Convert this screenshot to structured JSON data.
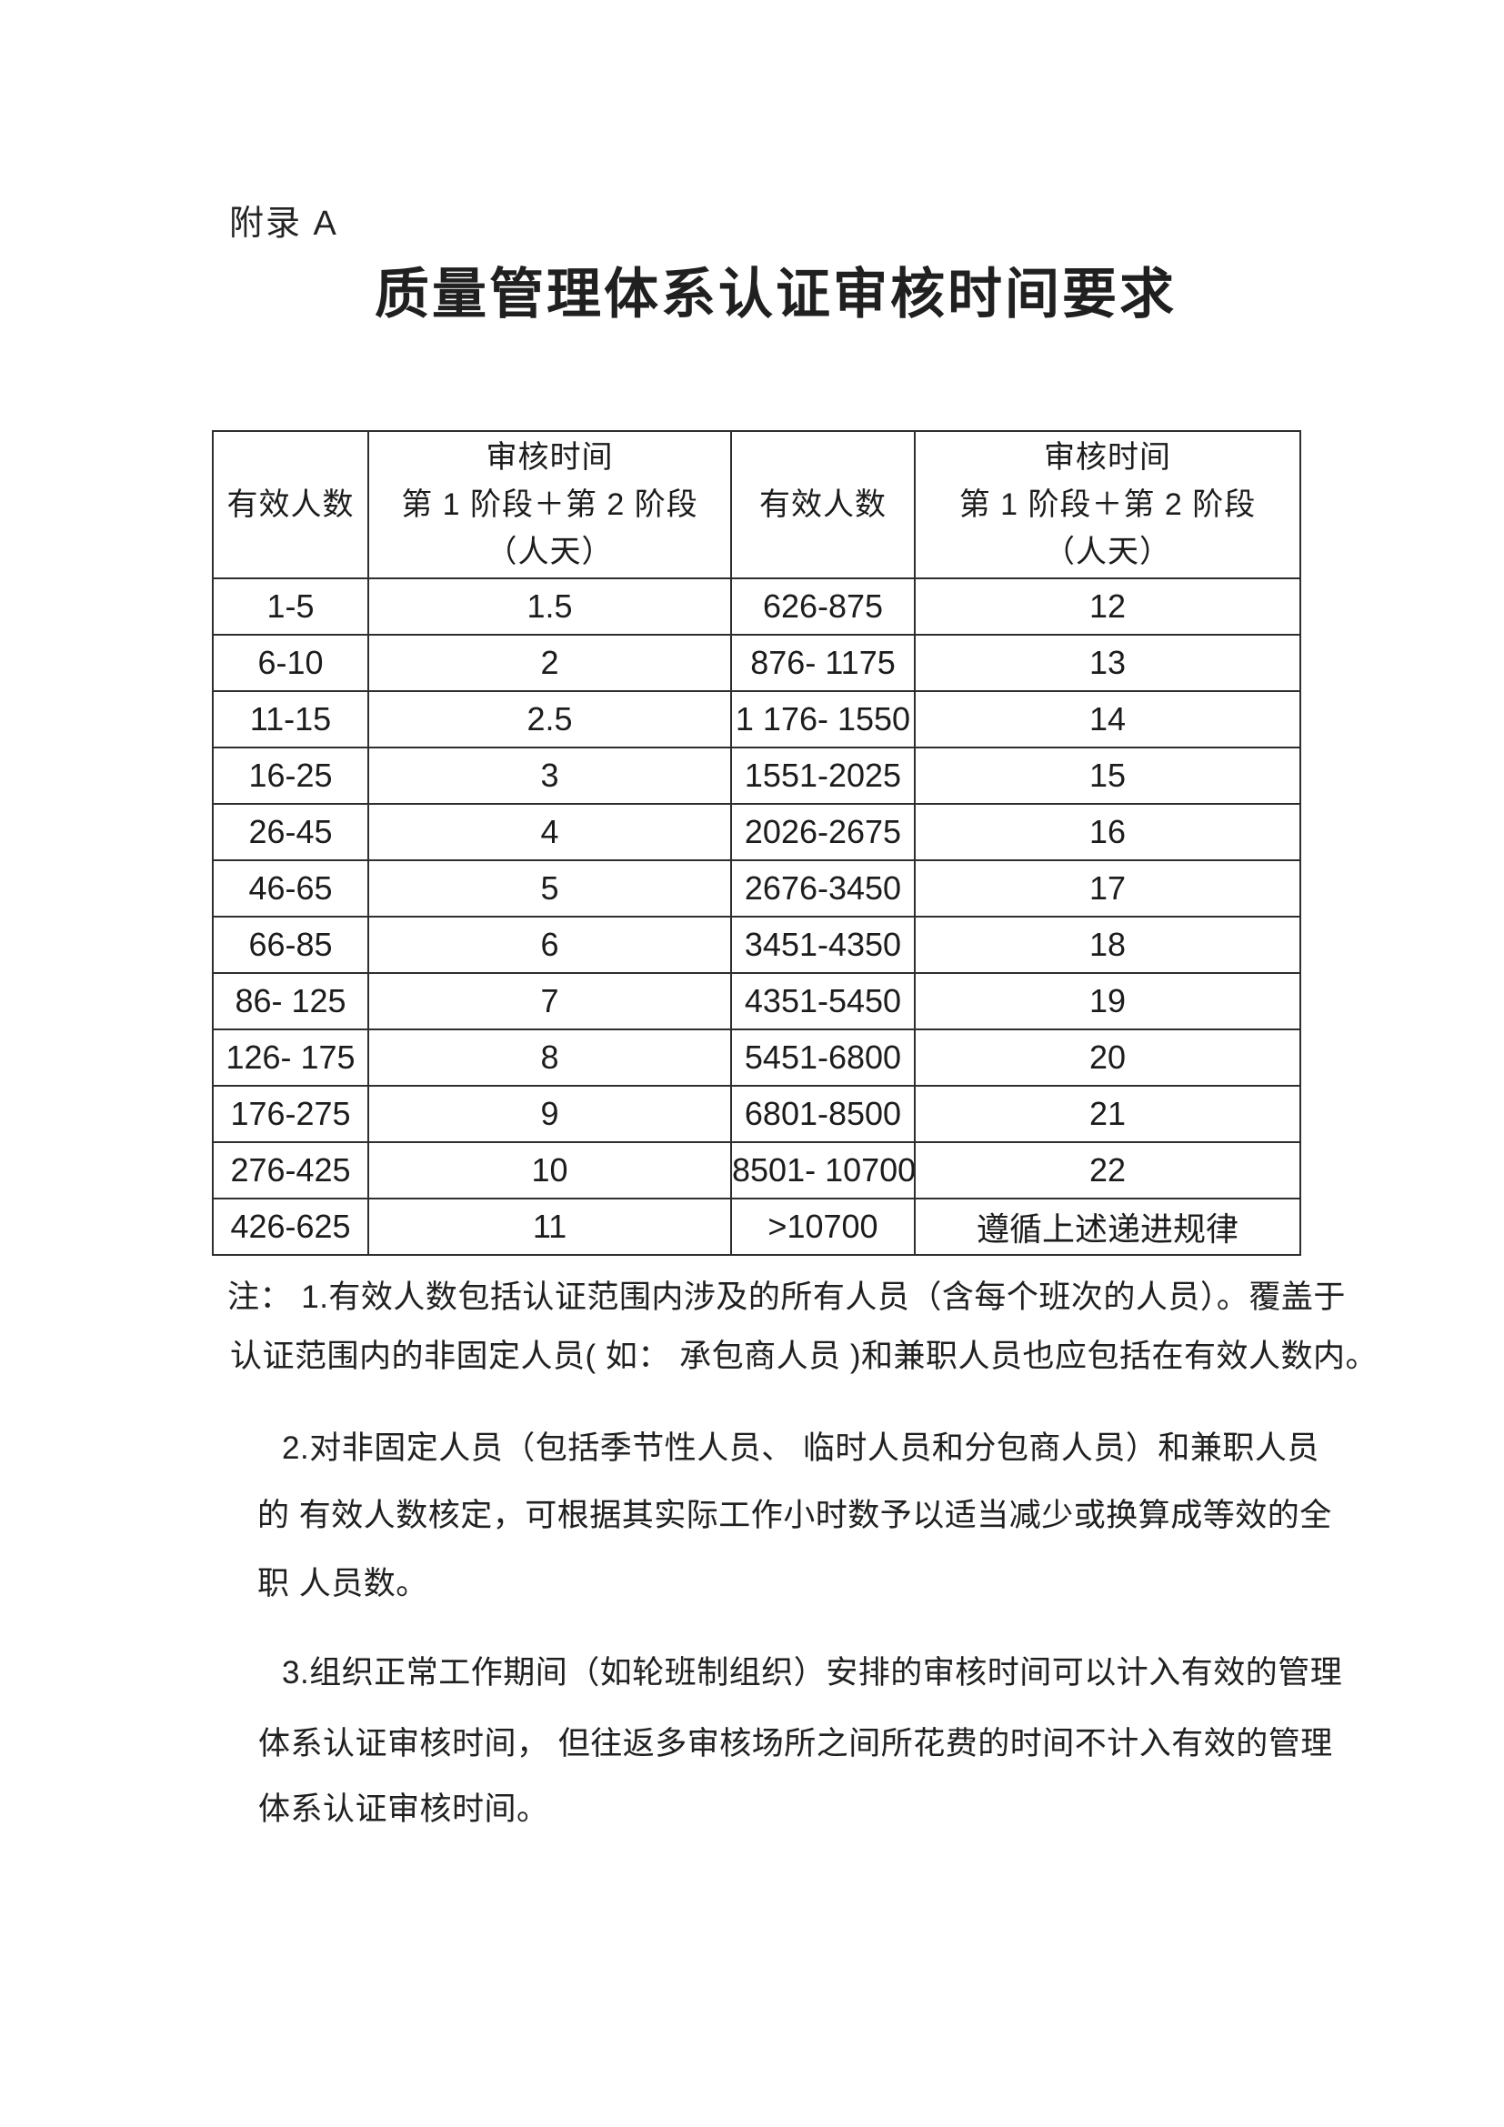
{
  "page": {
    "appendix_label": "附录 A",
    "title": "质量管理体系认证审核时间要求"
  },
  "table": {
    "header": {
      "people_label": "有效人数",
      "time_line1": "审核时间",
      "time_line2": "第 1 阶段＋第 2 阶段",
      "time_line3": "（人天）"
    },
    "rows": [
      {
        "left_people": "1-5",
        "left_days": "1.5",
        "right_people": "626-875",
        "right_days": "12"
      },
      {
        "left_people": "6-10",
        "left_days": "2",
        "right_people": "876- 1175",
        "right_days": "13"
      },
      {
        "left_people": "11-15",
        "left_days": "2.5",
        "right_people": "1 176- 1550",
        "right_days": "14"
      },
      {
        "left_people": "16-25",
        "left_days": "3",
        "right_people": "1551-2025",
        "right_days": "15"
      },
      {
        "left_people": "26-45",
        "left_days": "4",
        "right_people": "2026-2675",
        "right_days": "16"
      },
      {
        "left_people": "46-65",
        "left_days": "5",
        "right_people": "2676-3450",
        "right_days": "17"
      },
      {
        "left_people": "66-85",
        "left_days": "6",
        "right_people": "3451-4350",
        "right_days": "18"
      },
      {
        "left_people": "86- 125",
        "left_days": "7",
        "right_people": "4351-5450",
        "right_days": "19"
      },
      {
        "left_people": "126- 175",
        "left_days": "8",
        "right_people": "5451-6800",
        "right_days": "20"
      },
      {
        "left_people": "176-275",
        "left_days": "9",
        "right_people": "6801-8500",
        "right_days": "21"
      },
      {
        "left_people": "276-425",
        "left_days": "10",
        "right_people": "8501- 10700",
        "right_days": "22"
      },
      {
        "left_people": "426-625",
        "left_days": "11",
        "right_people": ">10700",
        "right_days": "遵循上述递进规律"
      }
    ]
  },
  "notes": {
    "lines": [
      "注： 1.有效人数包括认证范围内涉及的所有人员（含每个班次的人员）。覆盖于",
      "认证范围内的非固定人员( 如： 承包商人员 )和兼职人员也应包括在有效人数内。",
      "2.对非固定人员（包括季节性人员、 临时人员和分包商人员）和兼职人员",
      "的 有效人数核定，可根据其实际工作小时数予以适当减少或换算成等效的全",
      "职 人员数。",
      "3.组织正常工作期间（如轮班制组织）安排的审核时间可以计入有效的管理",
      "体系认证审核时间， 但往返多审核场所之间所花费的时间不计入有效的管理",
      "体系认证审核时间。"
    ]
  },
  "colors": {
    "text": "#1f1f1f",
    "border": "#2e2e2e",
    "background": "#ffffff"
  }
}
